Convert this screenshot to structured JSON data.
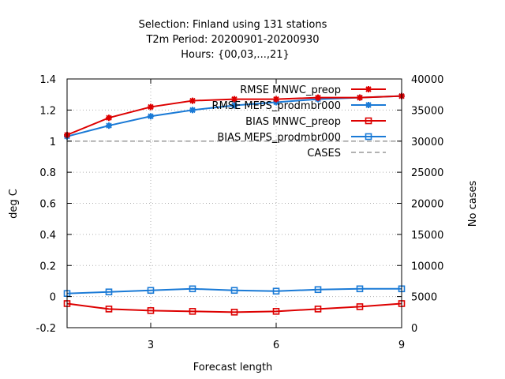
{
  "chart_data": {
    "type": "line",
    "title_lines": [
      "Selection: Finland using   131 stations",
      "T2m   Period: 20200901-20200930",
      "Hours: {00,03,...,21}"
    ],
    "xlabel": "Forecast length",
    "ylabel": "deg C",
    "y2label": "No cases",
    "xlim": [
      1,
      9
    ],
    "ylim": [
      -0.2,
      1.4
    ],
    "y2lim": [
      0,
      40000
    ],
    "xticks": [
      3,
      6,
      9
    ],
    "yticks": [
      -0.2,
      0,
      0.2,
      0.4,
      0.6,
      0.8,
      1,
      1.2,
      1.4
    ],
    "yticklabels": [
      "-0.2",
      "0",
      "0.2",
      "0.4",
      "0.6",
      "0.8",
      "1",
      "1.2",
      "1.4"
    ],
    "y2ticks": [
      0,
      5000,
      10000,
      15000,
      20000,
      25000,
      30000,
      35000,
      40000
    ],
    "grid": true,
    "legend_position": "top-right",
    "x": [
      1,
      2,
      3,
      4,
      5,
      6,
      7,
      8,
      9
    ],
    "series": [
      {
        "name": "RMSE MNWC_preop",
        "color": "#dd0000",
        "marker": "star",
        "axis": "y1",
        "values": [
          1.04,
          1.15,
          1.22,
          1.26,
          1.27,
          1.27,
          1.28,
          1.28,
          1.29
        ]
      },
      {
        "name": "RMSE MEPS_prodmbr000",
        "color": "#1a7ad6",
        "marker": "star",
        "axis": "y1",
        "values": [
          1.03,
          1.1,
          1.16,
          1.2,
          1.23,
          1.25,
          1.27,
          1.28,
          1.29
        ]
      },
      {
        "name": "BIAS MNWC_preop",
        "color": "#dd0000",
        "marker": "square",
        "axis": "y1",
        "values": [
          -0.045,
          -0.08,
          -0.09,
          -0.095,
          -0.1,
          -0.095,
          -0.08,
          -0.065,
          -0.045
        ]
      },
      {
        "name": "BIAS MEPS_prodmbr000",
        "color": "#1a7ad6",
        "marker": "square",
        "axis": "y1",
        "values": [
          0.02,
          0.03,
          0.04,
          0.05,
          0.04,
          0.035,
          0.045,
          0.05,
          0.05
        ]
      },
      {
        "name": "CASES",
        "color": "#999999",
        "marker": "none",
        "dash": true,
        "axis": "y2",
        "values": [
          30000,
          30000,
          30000,
          30000,
          30000,
          30000,
          30000,
          30000,
          30000
        ]
      }
    ]
  }
}
